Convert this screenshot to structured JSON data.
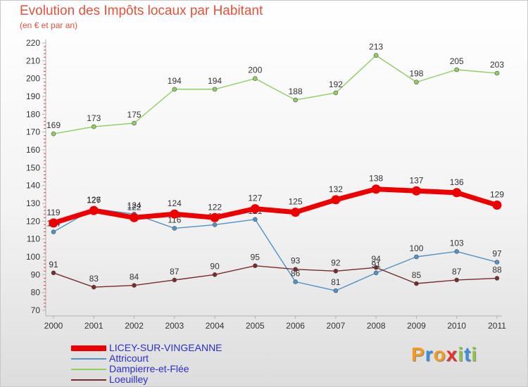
{
  "header": {
    "title": "Evolution des Impôts locaux par Habitant",
    "subtitle": "(en € et par an)"
  },
  "brand": {
    "letters": [
      "P",
      "r",
      "o",
      "x",
      "i",
      "t",
      "i"
    ],
    "colors": [
      "#f39b1f",
      "#3a8ee0",
      "#f39b1f",
      "#e8302a",
      "#8cc63f",
      "#3a8ee0",
      "#8cc63f"
    ]
  },
  "chart_data": {
    "type": "line",
    "title": "Evolution des Impôts locaux par Habitant",
    "subtitle": "(en € et par an)",
    "xlabel": "",
    "ylabel": "",
    "x": [
      "2000",
      "2001",
      "2002",
      "2003",
      "2004",
      "2005",
      "2006",
      "2007",
      "2008",
      "2009",
      "2010",
      "2011"
    ],
    "ylim": [
      70,
      220
    ],
    "yticks": [
      "70",
      "80",
      "90",
      "100",
      "110",
      "120",
      "130",
      "140",
      "150",
      "160",
      "170",
      "180",
      "190",
      "200",
      "210",
      "220"
    ],
    "grid": false,
    "legend_position": "bottom-left",
    "series": [
      {
        "name": "LICEY-SUR-VINGEANNE",
        "color": "#ee0000",
        "highlight": true,
        "values": [
          119,
          126,
          122,
          124,
          122,
          127,
          125,
          132,
          138,
          137,
          136,
          129
        ]
      },
      {
        "name": "Attricourt",
        "color": "#4f93c9",
        "highlight": false,
        "values": [
          114,
          127,
          124,
          116,
          118,
          121,
          86,
          81,
          91,
          100,
          103,
          97
        ]
      },
      {
        "name": "Dampierre-et-Flée",
        "color": "#8fcf5f",
        "highlight": false,
        "values": [
          169,
          173,
          175,
          194,
          194,
          200,
          188,
          192,
          213,
          198,
          205,
          203
        ]
      },
      {
        "name": "Loeuilley",
        "color": "#7a2a2a",
        "highlight": false,
        "values": [
          91,
          83,
          84,
          87,
          90,
          95,
          93,
          92,
          94,
          85,
          87,
          88
        ]
      }
    ]
  }
}
